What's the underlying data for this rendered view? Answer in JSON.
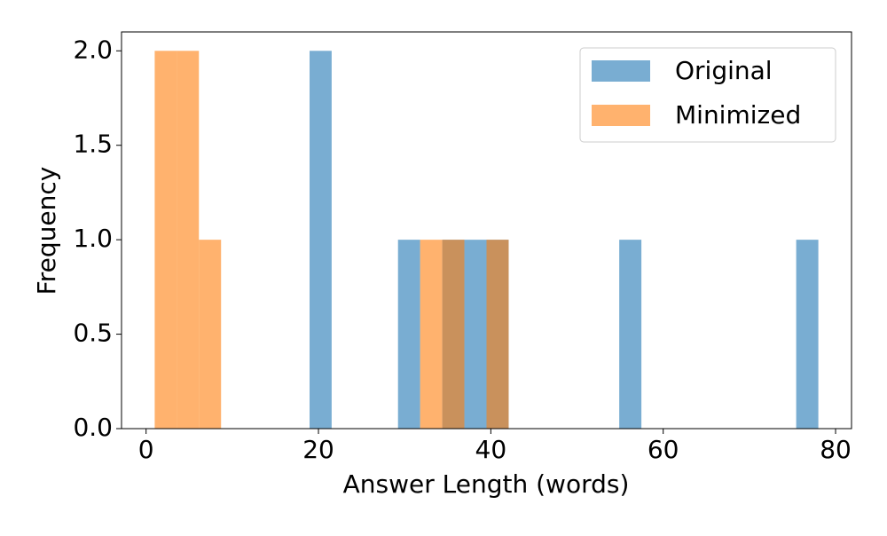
{
  "chart_data": {
    "type": "histogram",
    "xlabel": "Answer Length (words)",
    "ylabel": "Frequency",
    "bins": [
      1,
      3.57,
      6.13,
      8.7,
      11.27,
      13.83,
      16.4,
      18.97,
      21.53,
      24.1,
      26.67,
      29.23,
      31.8,
      34.37,
      36.93,
      39.5,
      42.07,
      44.63,
      47.2,
      49.77,
      52.33,
      54.9,
      57.47,
      60.03,
      62.6,
      65.17,
      67.73,
      70.3,
      72.87,
      75.43,
      78
    ],
    "series": [
      {
        "name": "Original",
        "color": "#1f77b4",
        "values": [
          0,
          0,
          0,
          0,
          0,
          0,
          0,
          2,
          0,
          0,
          0,
          1,
          0,
          1,
          1,
          1,
          0,
          0,
          0,
          0,
          0,
          1,
          0,
          0,
          0,
          0,
          0,
          0,
          0,
          1
        ]
      },
      {
        "name": "Minimized",
        "color": "#ff7f0e",
        "values": [
          2,
          2,
          1,
          0,
          0,
          0,
          0,
          0,
          0,
          0,
          0,
          0,
          1,
          1,
          0,
          1,
          0,
          0,
          0,
          0,
          0,
          0,
          0,
          0,
          0,
          0,
          0,
          0,
          0,
          0
        ]
      }
    ],
    "alpha": 0.6,
    "xlim": [
      -2.85,
      81.85
    ],
    "xticks": [
      0,
      20,
      40,
      60,
      80
    ],
    "ylim": [
      0,
      2.1
    ],
    "yticks": [
      {
        "value": 0,
        "label": "0.0"
      },
      0.5,
      {
        "value": 1,
        "label": "1.0"
      },
      1.5,
      {
        "value": 2,
        "label": "2.0"
      }
    ],
    "legend": "upper right"
  }
}
